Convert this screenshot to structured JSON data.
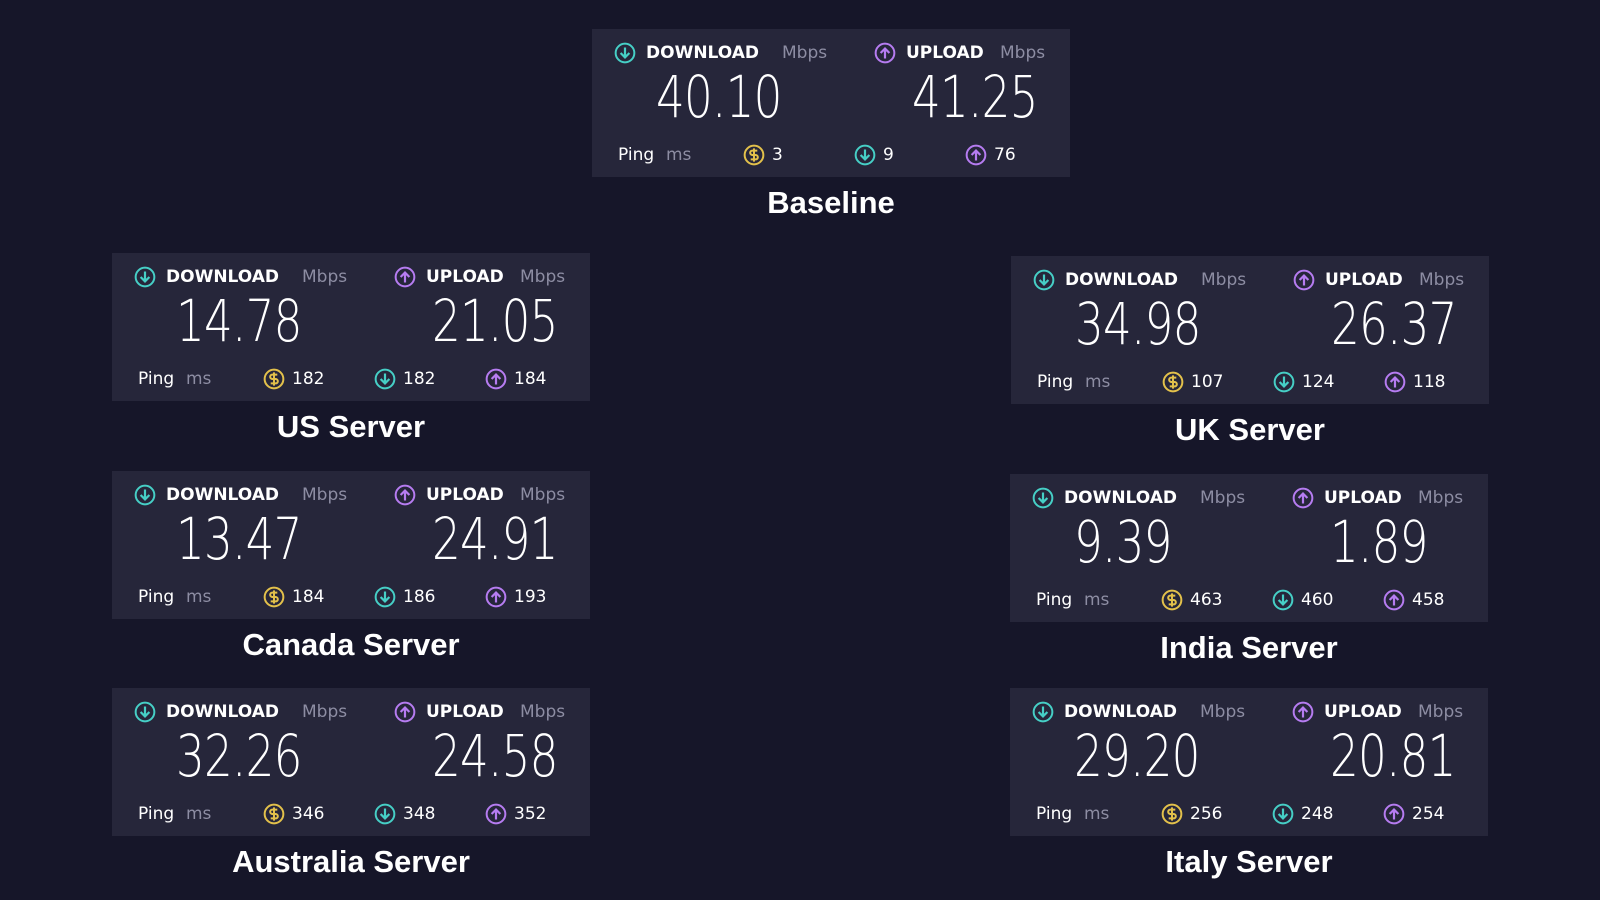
{
  "labels": {
    "download": "DOWNLOAD",
    "upload": "UPLOAD",
    "speed_unit": "Mbps",
    "ping": "Ping",
    "ping_unit": "ms"
  },
  "panels": [
    {
      "caption": "Baseline",
      "download": "40.10",
      "upload": "41.25",
      "ping_idle": 3,
      "ping_download": 9,
      "ping_upload": 76
    },
    {
      "caption": "US Server",
      "download": "14.78",
      "upload": "21.05",
      "ping_idle": 182,
      "ping_download": 182,
      "ping_upload": 184
    },
    {
      "caption": "UK Server",
      "download": "34.98",
      "upload": "26.37",
      "ping_idle": 107,
      "ping_download": 124,
      "ping_upload": 118
    },
    {
      "caption": "Canada Server",
      "download": "13.47",
      "upload": "24.91",
      "ping_idle": 184,
      "ping_download": 186,
      "ping_upload": 193
    },
    {
      "caption": "India Server",
      "download": "9.39",
      "upload": "1.89",
      "ping_idle": 463,
      "ping_download": 460,
      "ping_upload": 458
    },
    {
      "caption": "Australia Server",
      "download": "32.26",
      "upload": "24.58",
      "ping_idle": 346,
      "ping_download": 348,
      "ping_upload": 352
    },
    {
      "caption": "Italy Server",
      "download": "29.20",
      "upload": "20.81",
      "ping_idle": 256,
      "ping_download": 248,
      "ping_upload": 254
    }
  ]
}
